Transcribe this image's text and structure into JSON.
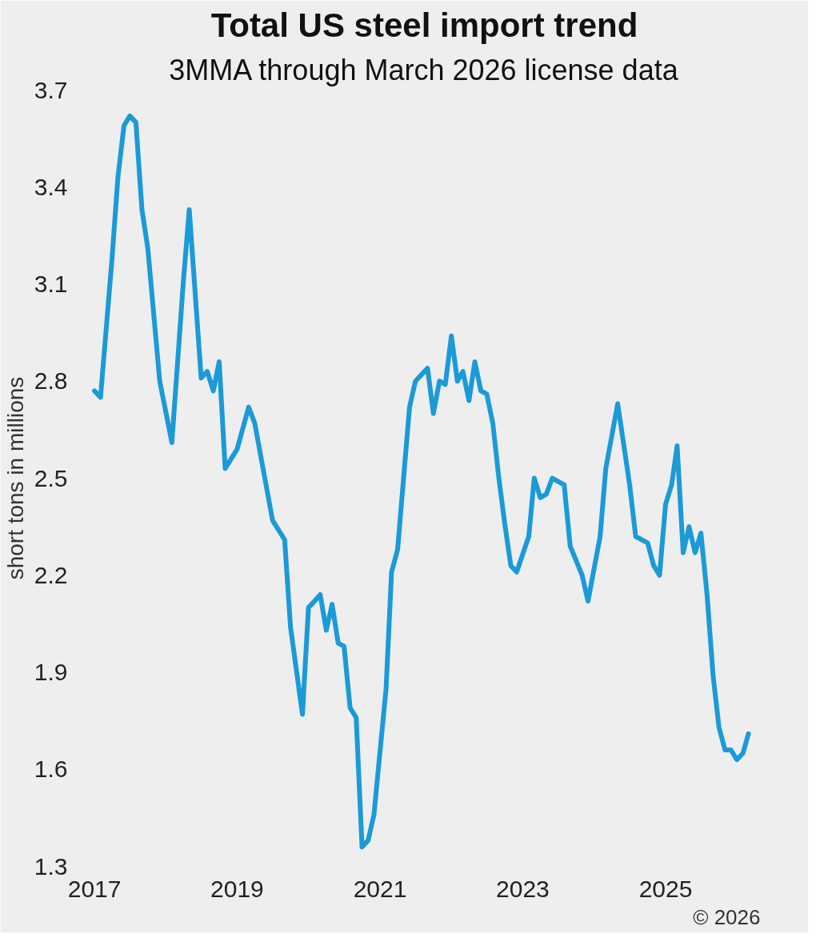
{
  "chart_data": {
    "type": "line",
    "title": "Total US steel import trend",
    "subtitle": "3MMA through March 2026 license data",
    "ylabel": "short tons in millions",
    "x": [
      "2017-01",
      "2017-02",
      "2017-04",
      "2017-05",
      "2017-06",
      "2017-07",
      "2017-08",
      "2017-09",
      "2017-10",
      "2017-12",
      "2018-02",
      "2018-04",
      "2018-05",
      "2018-07",
      "2018-08",
      "2018-09",
      "2018-10",
      "2018-11",
      "2019-01",
      "2019-03",
      "2019-04",
      "2019-07",
      "2019-09",
      "2019-10",
      "2019-12",
      "2020-01",
      "2020-02",
      "2020-03",
      "2020-04",
      "2020-05",
      "2020-06",
      "2020-07",
      "2020-08",
      "2020-09",
      "2020-10",
      "2020-11",
      "2020-12",
      "2021-02",
      "2021-03",
      "2021-04",
      "2021-06",
      "2021-07",
      "2021-09",
      "2021-10",
      "2021-11",
      "2021-12",
      "2022-01",
      "2022-02",
      "2022-03",
      "2022-04",
      "2022-05",
      "2022-06",
      "2022-07",
      "2022-08",
      "2022-09",
      "2022-10",
      "2022-11",
      "2022-12",
      "2023-02",
      "2023-03",
      "2023-04",
      "2023-05",
      "2023-06",
      "2023-07",
      "2023-08",
      "2023-09",
      "2023-11",
      "2023-12",
      "2024-02",
      "2024-03",
      "2024-05",
      "2024-07",
      "2024-08",
      "2024-10",
      "2024-11",
      "2024-12",
      "2025-01",
      "2025-02",
      "2025-03",
      "2025-04",
      "2025-05",
      "2025-06",
      "2025-07",
      "2025-08",
      "2025-09",
      "2025-10",
      "2025-11",
      "2025-12",
      "2026-01",
      "2026-02",
      "2026-03"
    ],
    "series": [
      {
        "color": "#1b9ad8",
        "values": [
          2.77,
          2.75,
          3.18,
          3.43,
          3.59,
          3.62,
          3.6,
          3.33,
          3.21,
          2.8,
          2.61,
          3.11,
          3.33,
          2.81,
          2.83,
          2.77,
          2.86,
          2.53,
          2.59,
          2.72,
          2.67,
          2.37,
          2.31,
          2.04,
          1.77,
          2.1,
          2.12,
          2.14,
          2.03,
          2.11,
          1.99,
          1.98,
          1.79,
          1.76,
          1.36,
          1.38,
          1.46,
          1.85,
          2.21,
          2.28,
          2.72,
          2.8,
          2.84,
          2.7,
          2.8,
          2.79,
          2.94,
          2.8,
          2.83,
          2.74,
          2.86,
          2.77,
          2.76,
          2.67,
          2.5,
          2.36,
          2.23,
          2.21,
          2.32,
          2.5,
          2.44,
          2.45,
          2.5,
          2.49,
          2.48,
          2.29,
          2.2,
          2.12,
          2.32,
          2.53,
          2.73,
          2.48,
          2.32,
          2.3,
          2.23,
          2.2,
          2.42,
          2.48,
          2.6,
          2.27,
          2.35,
          2.27,
          2.33,
          2.14,
          1.89,
          1.73,
          1.66,
          1.66,
          1.63,
          1.65,
          1.71
        ]
      }
    ],
    "xlim": [
      "2016-12",
      "2026-05"
    ],
    "xticks": [
      "2017",
      "2019",
      "2021",
      "2023",
      "2025"
    ],
    "ylim": [
      1.3,
      3.7
    ],
    "yticks": [
      1.3,
      1.6,
      1.9,
      2.2,
      2.5,
      2.8,
      3.1,
      3.4,
      3.7
    ],
    "grid": false,
    "marker": "none",
    "line_style": "solid",
    "annotations": [
      "© 2026"
    ]
  }
}
